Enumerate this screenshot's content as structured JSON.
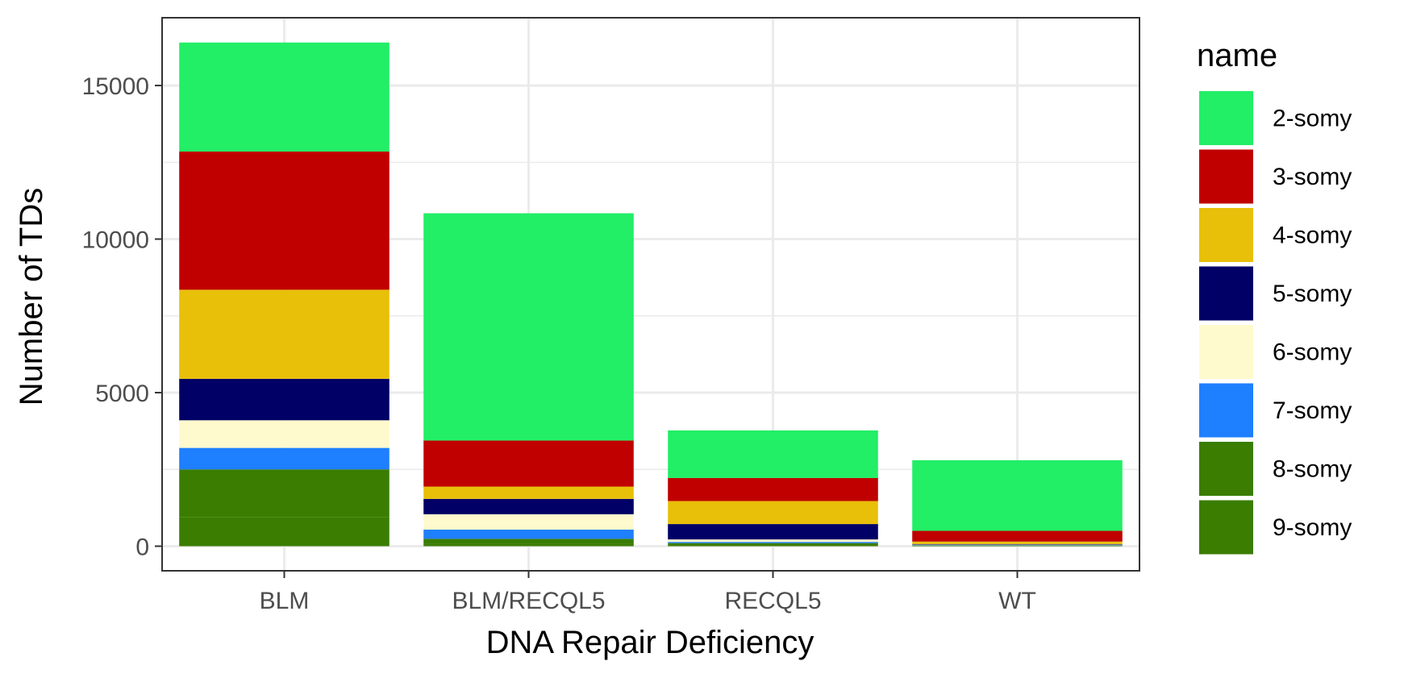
{
  "chart_data": {
    "type": "bar",
    "stacked": true,
    "xlabel": "DNA Repair Deficiency",
    "ylabel": "Number of TDs",
    "ylim": [
      -750,
      16900
    ],
    "yticks": [
      0,
      5000,
      10000,
      15000
    ],
    "grid": true,
    "legend_title": "name",
    "legend_position": "right",
    "categories": [
      "BLM",
      "BLM/RECQL5",
      "RECQL5",
      "WT"
    ],
    "series": [
      {
        "name": "2-somy",
        "color": "#22EE66",
        "values": [
          3550,
          7400,
          1550,
          2300
        ]
      },
      {
        "name": "3-somy",
        "color": "#C00000",
        "values": [
          4500,
          1500,
          750,
          350
        ]
      },
      {
        "name": "4-somy",
        "color": "#E8C00A",
        "values": [
          2900,
          400,
          750,
          80
        ]
      },
      {
        "name": "5-somy",
        "color": "#000066",
        "values": [
          1350,
          500,
          500,
          20
        ]
      },
      {
        "name": "6-somy",
        "color": "#FFFACD",
        "values": [
          900,
          500,
          80,
          15
        ]
      },
      {
        "name": "7-somy",
        "color": "#1E7FFF",
        "values": [
          700,
          300,
          40,
          10
        ]
      },
      {
        "name": "8-somy",
        "color": "#3A7D00",
        "values": [
          1550,
          150,
          60,
          10
        ]
      },
      {
        "name": "9-somy",
        "color": "#3A7D00",
        "values": [
          950,
          90,
          40,
          15
        ]
      }
    ]
  }
}
